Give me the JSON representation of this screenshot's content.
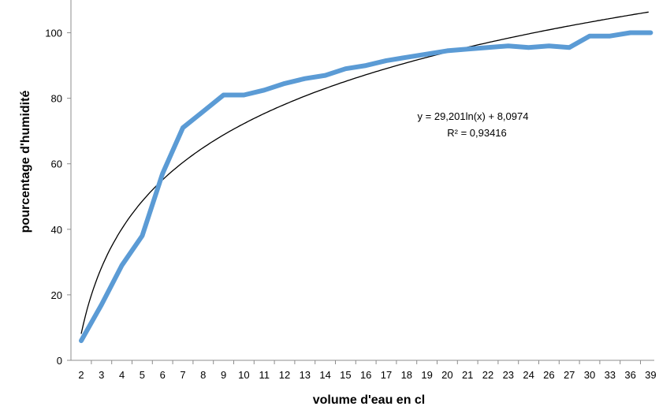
{
  "chart_data": {
    "type": "line",
    "title": "",
    "xlabel": "volume d'eau en cl",
    "ylabel": "pourcentage d'humidité",
    "ylim": [
      0,
      110
    ],
    "yticks": [
      0,
      20,
      40,
      60,
      80,
      100
    ],
    "categories": [
      "2",
      "3",
      "4",
      "5",
      "6",
      "7",
      "8",
      "9",
      "10",
      "11",
      "12",
      "13",
      "14",
      "15",
      "16",
      "17",
      "18",
      "19",
      "20",
      "21",
      "22",
      "23",
      "24",
      "26",
      "27",
      "30",
      "33",
      "36",
      "39"
    ],
    "series": [
      {
        "values": [
          6,
          17,
          29,
          38,
          57,
          71,
          76,
          81,
          81,
          82.5,
          84.5,
          86,
          87,
          89,
          90,
          91.5,
          92.5,
          93.5,
          94.5,
          95,
          95.5,
          96,
          95.5,
          96,
          95.5,
          99,
          99,
          100,
          100
        ],
        "color": "#5b9bd5"
      }
    ],
    "trendline": {
      "type": "logarithmic",
      "a": 29.201,
      "b": 8.0974,
      "color": "#000000",
      "equation_label": "y = 29,201ln(x) + 8,0974",
      "r2_label": "R² = 0,93416"
    },
    "grid": false,
    "legend": "none"
  }
}
